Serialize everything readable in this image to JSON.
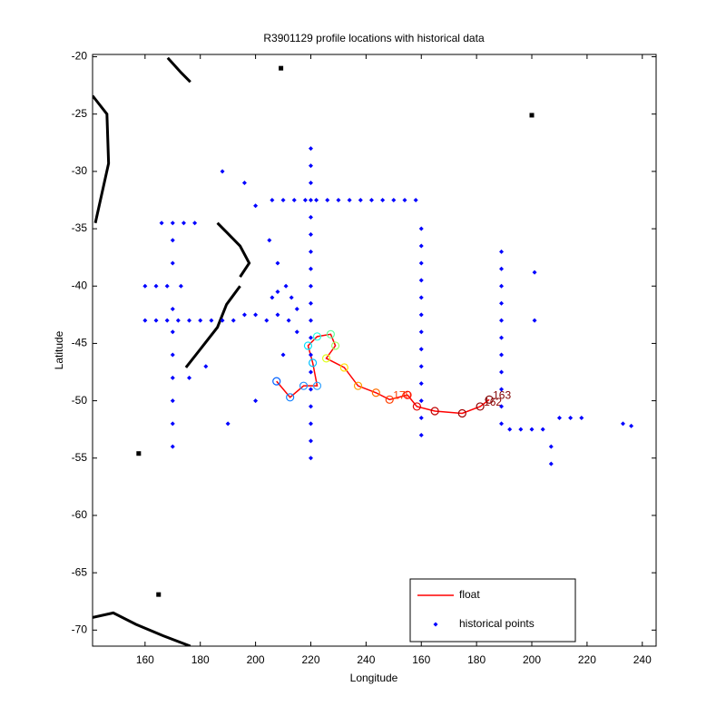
{
  "chart_data": {
    "type": "scatter",
    "title": "R3901129 profile locations with historical data",
    "xlabel": "Longitude",
    "ylabel": "Latitude",
    "xlim": [
      141,
      345
    ],
    "ylim": [
      -71.4,
      -19.8
    ],
    "xticks": [
      160,
      180,
      200,
      220,
      240,
      {
        "value": 260,
        "label": "160"
      },
      {
        "value": 280,
        "label": "180"
      },
      {
        "value": 300,
        "label": "200"
      },
      {
        "value": 320,
        "label": "220"
      },
      {
        "value": 340,
        "label": "240"
      }
    ],
    "yticks": [
      -20,
      -25,
      -30,
      -35,
      -40,
      -45,
      -50,
      -55,
      -60,
      -65,
      -70
    ],
    "legend": "lower right",
    "grid": false,
    "series": [
      {
        "name": "float",
        "color": "#ff0000",
        "x": [
          207.6,
          212.5,
          217.4,
          222.3,
          220.7,
          219,
          222.3,
          227.2,
          228.9,
          225.6,
          232.1,
          237.1,
          243.6,
          248.5,
          255,
          258.4,
          264.9,
          274.8,
          281.3,
          284.6
        ],
        "values": [
          -48.3,
          -49.7,
          -48.7,
          -48.7,
          -46.7,
          -45.2,
          -44.4,
          -44.2,
          -45.2,
          -46.3,
          -47.1,
          -48.7,
          -49.3,
          -49.9,
          -49.5,
          -50.5,
          -50.9,
          -51.1,
          -50.5,
          -49.9
        ],
        "marker_colors": [
          "#0060ff",
          "#1080ff",
          "#2090ff",
          "#30a0ff",
          "#00c0ff",
          "#00e0ff",
          "#20ffdf",
          "#60ff9f",
          "#a0ff60",
          "#dfff20",
          "#ffe000",
          "#ffa000",
          "#ff7000",
          "#ff4000",
          "#ff1000",
          "#e00000",
          "#c00000",
          "#a00000",
          "#900000",
          "#800000"
        ],
        "labels": [
          null,
          null,
          null,
          null,
          null,
          null,
          null,
          null,
          null,
          null,
          null,
          null,
          null,
          "170",
          null,
          null,
          null,
          null,
          "162",
          "163"
        ]
      },
      {
        "name": "historical points",
        "color": "#0000ff",
        "x": [
          220,
          220,
          220,
          220,
          220,
          220,
          220,
          220,
          220,
          220,
          220,
          220,
          220,
          220,
          220,
          220,
          220,
          220,
          220,
          260,
          260,
          260,
          260,
          260,
          260,
          260,
          260,
          260,
          260,
          260,
          260,
          260,
          289,
          289,
          289,
          289,
          289,
          289,
          289,
          289,
          289,
          289,
          289,
          206,
          210,
          214,
          218,
          222,
          226,
          230,
          234,
          238,
          242,
          246,
          250,
          254,
          258,
          292,
          296,
          300,
          304,
          307,
          307,
          310,
          314,
          318,
          333,
          336,
          160,
          164,
          168,
          172,
          176,
          180,
          184,
          188,
          192,
          170,
          170,
          170,
          170,
          170,
          170,
          170,
          170,
          170,
          166,
          170,
          174,
          178,
          188,
          196,
          200,
          205,
          208,
          215,
          210,
          200,
          190,
          182,
          176,
          206,
          208,
          211,
          213,
          215,
          212,
          208,
          204,
          200,
          196,
          160,
          164,
          168,
          173,
          301,
          301
        ],
        "values": [
          -28,
          -29.5,
          -31,
          -32.5,
          -34,
          -35.5,
          -37,
          -38.5,
          -40,
          -41.5,
          -43,
          -44.5,
          -46,
          -47.5,
          -49,
          -50.5,
          -52,
          -53.5,
          -55,
          -35,
          -36.5,
          -38,
          -39.5,
          -41,
          -42.5,
          -44,
          -45.5,
          -47,
          -48.5,
          -50,
          -51.5,
          -53,
          -37,
          -38.5,
          -40,
          -41.5,
          -43,
          -44.5,
          -46,
          -47.5,
          -49,
          -50.5,
          -52,
          -32.5,
          -32.5,
          -32.5,
          -32.5,
          -32.5,
          -32.5,
          -32.5,
          -32.5,
          -32.5,
          -32.5,
          -32.5,
          -32.5,
          -32.5,
          -32.5,
          -52.5,
          -52.5,
          -52.5,
          -52.5,
          -54,
          -55.5,
          -51.5,
          -51.5,
          -51.5,
          -52,
          -52.2,
          -43,
          -43,
          -43,
          -43,
          -43,
          -43,
          -43,
          -43,
          -43,
          -36,
          -38,
          -42,
          -44,
          -46,
          -48,
          -50,
          -52,
          -54,
          -34.5,
          -34.5,
          -34.5,
          -34.5,
          -30,
          -31,
          -33,
          -36,
          -38,
          -44,
          -46,
          -50,
          -52,
          -47,
          -48,
          -41,
          -40.5,
          -40,
          -41,
          -42,
          -43,
          -42.5,
          -43,
          -42.5,
          -42.5,
          -40,
          -40,
          -40,
          -40,
          -38.8,
          -43
        ]
      }
    ],
    "outlines": [
      {
        "color": "#000000",
        "x": [
          174.8,
          179.7,
          186.2,
          189.5,
          194.4
        ],
        "y": [
          -47.1,
          -45.6,
          -43.6,
          -41.6,
          -40
        ]
      },
      {
        "color": "#000000",
        "x": [
          194.4,
          197.7,
          194.4,
          189.5,
          186.2
        ],
        "y": [
          -39.2,
          -38,
          -36.5,
          -35.3,
          -34.5
        ]
      },
      {
        "color": "#000000",
        "x": [
          141,
          146.2,
          146.8,
          142
        ],
        "y": [
          -23.4,
          -25,
          -29.3,
          -34.5
        ]
      },
      {
        "color": "#000000",
        "x": [
          141,
          148.5,
          156.7,
          166.6,
          176.4
        ],
        "y": [
          -68.9,
          -68.5,
          -69.5,
          -70.5,
          -71.4
        ]
      },
      {
        "color": "#000000",
        "x": [
          168.2,
          173.1,
          176.4
        ],
        "y": [
          -20.1,
          -21.4,
          -22.2
        ]
      },
      {
        "color": "#000000",
        "x": [
          209.2
        ],
        "y": [
          -21
        ]
      },
      {
        "color": "#000000",
        "x": [
          300
        ],
        "y": [
          -25.1
        ]
      },
      {
        "color": "#000000",
        "x": [
          157.7
        ],
        "y": [
          -54.6
        ]
      },
      {
        "color": "#000000",
        "x": [
          164.9
        ],
        "y": [
          -66.9
        ]
      }
    ]
  }
}
